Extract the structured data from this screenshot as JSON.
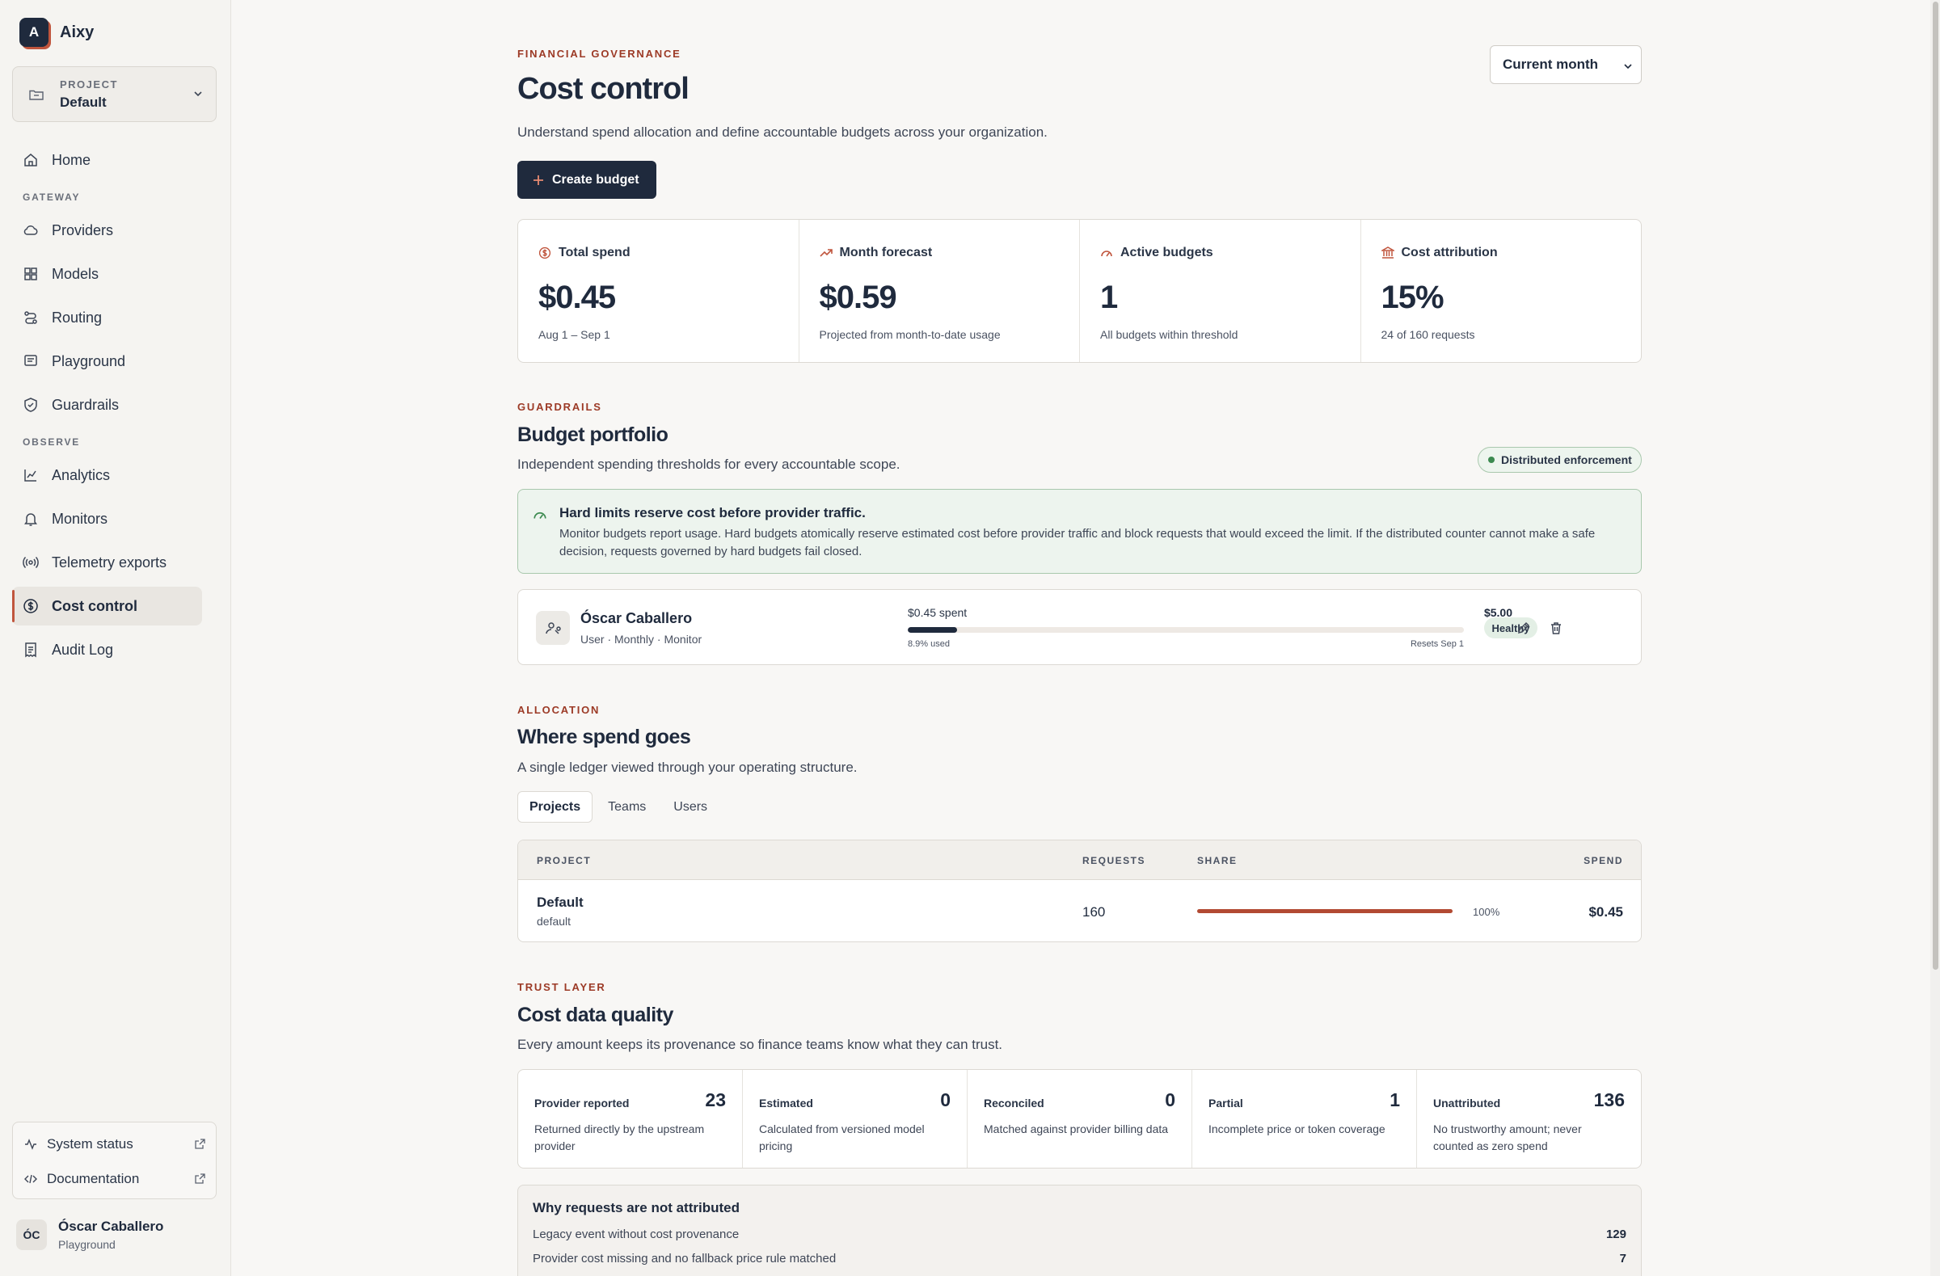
{
  "app": {
    "logo_letter": "A",
    "name": "Aixy"
  },
  "project_switcher": {
    "label": "PROJECT",
    "value": "Default"
  },
  "nav": {
    "home": "Home",
    "section_gateway": "GATEWAY",
    "providers": "Providers",
    "models": "Models",
    "routing": "Routing",
    "playground": "Playground",
    "guardrails": "Guardrails",
    "section_observe": "OBSERVE",
    "analytics": "Analytics",
    "monitors": "Monitors",
    "telemetry": "Telemetry exports",
    "cost_control": "Cost control",
    "audit_log": "Audit Log"
  },
  "side_links": {
    "system_status": "System status",
    "documentation": "Documentation"
  },
  "user": {
    "initials": "ÓC",
    "name": "Óscar Caballero",
    "context": "Playground"
  },
  "header": {
    "eyebrow": "FINANCIAL GOVERNANCE",
    "title": "Cost control",
    "subtitle": "Understand spend allocation and define accountable budgets across your organization.",
    "period": "Current month",
    "create_button": "Create budget"
  },
  "stats": [
    {
      "label": "Total spend",
      "value": "$0.45",
      "caption": "Aug 1 – Sep 1",
      "icon": "dollar-circle-icon"
    },
    {
      "label": "Month forecast",
      "value": "$0.59",
      "caption": "Projected from month-to-date usage",
      "icon": "trend-up-icon"
    },
    {
      "label": "Active budgets",
      "value": "1",
      "caption": "All budgets within threshold",
      "icon": "gauge-icon"
    },
    {
      "label": "Cost attribution",
      "value": "15%",
      "caption": "24 of 160 requests",
      "icon": "bank-icon"
    }
  ],
  "guardrails": {
    "eyebrow": "GUARDRAILS",
    "title": "Budget portfolio",
    "subtitle": "Independent spending thresholds for every accountable scope.",
    "enforcement_badge": "Distributed enforcement",
    "notice_title": "Hard limits reserve cost before provider traffic.",
    "notice_body": "Monitor budgets report usage. Hard budgets atomically reserve estimated cost before provider traffic and block requests that would exceed the limit. If the distributed counter cannot make a safe decision, requests governed by hard budgets fail closed."
  },
  "budget": {
    "name": "Óscar Caballero",
    "meta": "User · Monthly · Monitor",
    "spent": "$0.45 spent",
    "limit": "$5.00",
    "used_fraction": 0.089,
    "used_label": "8.9% used",
    "reset": "Resets Sep 1",
    "status": "Healthy"
  },
  "allocation": {
    "eyebrow": "ALLOCATION",
    "title": "Where spend goes",
    "subtitle": "A single ledger viewed through your operating structure.",
    "tabs": [
      "Projects",
      "Teams",
      "Users"
    ],
    "columns": {
      "project": "PROJECT",
      "requests": "REQUESTS",
      "share": "SHARE",
      "spend": "SPEND"
    },
    "rows": [
      {
        "name": "Default",
        "slug": "default",
        "requests": "160",
        "share_fraction": 1.0,
        "share_label": "100%",
        "spend": "$0.45"
      }
    ]
  },
  "trust": {
    "eyebrow": "TRUST LAYER",
    "title": "Cost data quality",
    "subtitle": "Every amount keeps its provenance so finance teams know what they can trust.",
    "cards": [
      {
        "label": "Provider reported",
        "count": "23",
        "desc": "Returned directly by the upstream provider"
      },
      {
        "label": "Estimated",
        "count": "0",
        "desc": "Calculated from versioned model pricing"
      },
      {
        "label": "Reconciled",
        "count": "0",
        "desc": "Matched against provider billing data"
      },
      {
        "label": "Partial",
        "count": "1",
        "desc": "Incomplete price or token coverage"
      },
      {
        "label": "Unattributed",
        "count": "136",
        "desc": "No trustworthy amount; never counted as zero spend"
      }
    ],
    "why_title": "Why requests are not attributed",
    "why_rows": [
      {
        "reason": "Legacy event without cost provenance",
        "count": "129"
      },
      {
        "reason": "Provider cost missing and no fallback price rule matched",
        "count": "7"
      }
    ]
  },
  "colors": {
    "navy": "#1f2a3d",
    "accent": "#c0553d",
    "eyebrow": "#9c3a26",
    "healthy_bg": "#e3efe5"
  }
}
